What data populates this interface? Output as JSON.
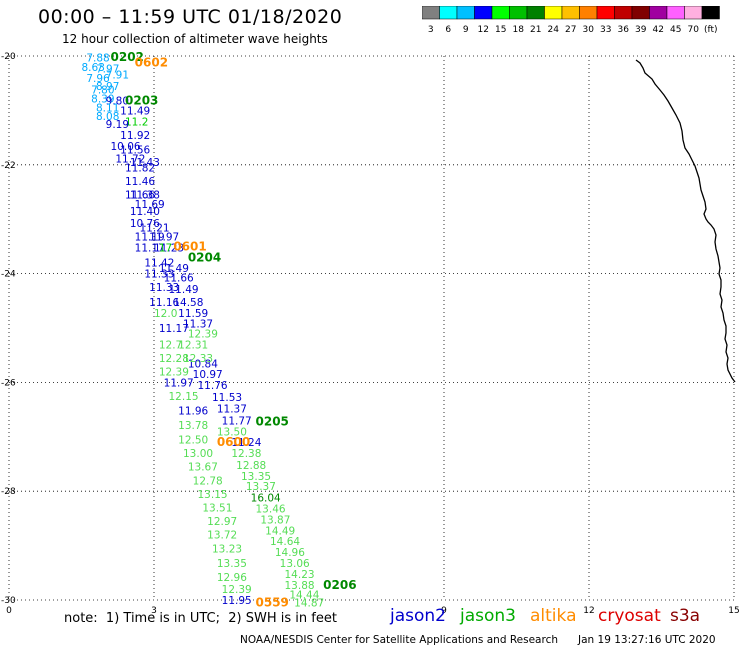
{
  "header": {
    "title": "00:00 – 11:59 UTC 01/18/2020",
    "subtitle": "12 hour collection of altimeter wave heights"
  },
  "colorbar": {
    "colors": [
      "#808080",
      "#00ffff",
      "#00c0ff",
      "#0000ff",
      "#00ff00",
      "#00c000",
      "#008000",
      "#ffff00",
      "#ffc000",
      "#ff8000",
      "#ff0000",
      "#c00000",
      "#800000",
      "#a000a0",
      "#ff60ff",
      "#ffb0e0",
      "#000000"
    ],
    "labels": [
      "3",
      "6",
      "9",
      "12",
      "15",
      "18",
      "21",
      "24",
      "27",
      "30",
      "33",
      "36",
      "39",
      "42",
      "45",
      "70",
      "(ft)"
    ]
  },
  "footer": {
    "note": "note:  1) Time is in UTC;  2) SWH is in feet",
    "satellites": [
      {
        "name": "jason2",
        "color": "#0000cc"
      },
      {
        "name": "jason3",
        "color": "#00aa00"
      },
      {
        "name": "altika",
        "color": "#ff8c00"
      },
      {
        "name": "cryosat",
        "color": "#dd0000"
      },
      {
        "name": "s3a",
        "color": "#880000"
      }
    ],
    "credit": "NOAA/NESDIS Center for Satellite Applications and Research",
    "timestamp": "Jan 19 13:27:16 UTC 2020"
  },
  "chart_data": {
    "type": "scatter",
    "xlim": [
      0,
      15
    ],
    "ylim": [
      -30,
      -20
    ],
    "x_ticks": [
      0,
      3,
      9,
      12,
      15
    ],
    "y_ticks": [
      -20,
      -22,
      -24,
      -26,
      -28,
      -30
    ],
    "grid": true,
    "series": [
      {
        "name": "jason2",
        "color": "#0000cc",
        "points": [
          {
            "x": 1.6,
            "y": -20.03,
            "label": "7.88",
            "color": "#00aaff"
          },
          {
            "x": 1.5,
            "y": -20.2,
            "label": "8.63",
            "color": "#00aaff"
          },
          {
            "x": 1.8,
            "y": -20.23,
            "label": "7.97",
            "color": "#00aaff"
          },
          {
            "x": 2.0,
            "y": -20.34,
            "label": "7.91",
            "color": "#00aaff"
          },
          {
            "x": 1.6,
            "y": -20.4,
            "label": "7.96",
            "color": "#00aaff"
          },
          {
            "x": 1.8,
            "y": -20.55,
            "label": "8.97",
            "color": "#00aaff"
          },
          {
            "x": 1.7,
            "y": -20.62,
            "label": "7.80",
            "color": "#00aaff"
          },
          {
            "x": 1.7,
            "y": -20.78,
            "label": "8.39",
            "color": "#00aaff"
          },
          {
            "x": 2.0,
            "y": -20.82,
            "label": "9.80",
            "color": "#0000cc"
          },
          {
            "x": 1.8,
            "y": -20.95,
            "label": "8.11",
            "color": "#00aaff"
          },
          {
            "x": 2.3,
            "y": -21.0,
            "label": "11.49",
            "color": "#0000cc"
          },
          {
            "x": 1.8,
            "y": -21.1,
            "label": "8.08",
            "color": "#00aaff"
          },
          {
            "x": 2.4,
            "y": -21.2,
            "label": "11.2",
            "color": "#00cc00"
          },
          {
            "x": 2.0,
            "y": -21.25,
            "label": "9.19",
            "color": "#0000cc"
          },
          {
            "x": 2.3,
            "y": -21.45,
            "label": "11.92",
            "color": "#0000cc"
          },
          {
            "x": 2.1,
            "y": -21.65,
            "label": "10.06",
            "color": "#0000cc"
          },
          {
            "x": 2.3,
            "y": -21.72,
            "label": "11.56",
            "color": "#0000cc"
          },
          {
            "x": 2.2,
            "y": -21.88,
            "label": "11.72",
            "color": "#0000cc"
          },
          {
            "x": 2.5,
            "y": -21.95,
            "label": "11.43",
            "color": "#0000cc"
          },
          {
            "x": 2.4,
            "y": -22.05,
            "label": "11.82",
            "color": "#0000cc"
          },
          {
            "x": 2.4,
            "y": -22.3,
            "label": "11.46",
            "color": "#0000cc"
          },
          {
            "x": 2.5,
            "y": -22.55,
            "label": "11.38",
            "color": "#0000cc"
          },
          {
            "x": 2.4,
            "y": -22.55,
            "label": "11.66",
            "color": "#0000cc"
          },
          {
            "x": 2.6,
            "y": -22.72,
            "label": "11.69",
            "color": "#0000cc"
          },
          {
            "x": 2.5,
            "y": -22.85,
            "label": "11.40",
            "color": "#0000cc"
          },
          {
            "x": 2.5,
            "y": -23.07,
            "label": "10.76",
            "color": "#0000cc"
          },
          {
            "x": 2.7,
            "y": -23.15,
            "label": "11.21",
            "color": "#0000cc"
          },
          {
            "x": 2.6,
            "y": -23.32,
            "label": "11.19",
            "color": "#0000cc"
          },
          {
            "x": 2.9,
            "y": -23.32,
            "label": "11.97",
            "color": "#0000cc"
          },
          {
            "x": 2.6,
            "y": -23.52,
            "label": "11.17",
            "color": "#0000cc"
          },
          {
            "x": 3.0,
            "y": -23.52,
            "label": "11.23",
            "color": "#0000cc"
          },
          {
            "x": 2.8,
            "y": -23.8,
            "label": "11.42",
            "color": "#0000cc"
          },
          {
            "x": 3.1,
            "y": -23.9,
            "label": "11.49",
            "color": "#0000cc"
          },
          {
            "x": 2.8,
            "y": -24.0,
            "label": "11.33",
            "color": "#0000cc"
          },
          {
            "x": 3.2,
            "y": -24.07,
            "label": "11.66",
            "color": "#0000cc"
          },
          {
            "x": 2.9,
            "y": -24.25,
            "label": "11.33",
            "color": "#0000cc"
          },
          {
            "x": 3.3,
            "y": -24.28,
            "label": "11.49",
            "color": "#0000cc"
          },
          {
            "x": 2.9,
            "y": -24.52,
            "label": "11.16",
            "color": "#0000cc"
          },
          {
            "x": 3.4,
            "y": -24.52,
            "label": "14.58",
            "color": "#0000cc"
          },
          {
            "x": 3.5,
            "y": -24.72,
            "label": "11.59",
            "color": "#0000cc"
          },
          {
            "x": 3.1,
            "y": -25.0,
            "label": "11.17",
            "color": "#0000cc"
          },
          {
            "x": 3.6,
            "y": -24.92,
            "label": "11.37",
            "color": "#0000cc"
          },
          {
            "x": 3.7,
            "y": -25.65,
            "label": "10.84",
            "color": "#0000cc"
          },
          {
            "x": 3.8,
            "y": -25.85,
            "label": "10.97",
            "color": "#0000cc"
          },
          {
            "x": 3.2,
            "y": -26.0,
            "label": "11.97",
            "color": "#0000cc"
          },
          {
            "x": 3.9,
            "y": -26.05,
            "label": "11.76",
            "color": "#0000cc"
          },
          {
            "x": 4.2,
            "y": -26.27,
            "label": "11.53",
            "color": "#0000cc"
          },
          {
            "x": 3.5,
            "y": -26.52,
            "label": "11.96",
            "color": "#0000cc"
          },
          {
            "x": 4.3,
            "y": -26.48,
            "label": "11.37",
            "color": "#0000cc"
          },
          {
            "x": 4.4,
            "y": -26.7,
            "label": "11.77",
            "color": "#0000cc"
          },
          {
            "x": 4.6,
            "y": -27.1,
            "label": "11.24",
            "color": "#0000cc"
          },
          {
            "x": 4.4,
            "y": -30.0,
            "label": "11.95",
            "color": "#0000cc"
          }
        ]
      },
      {
        "name": "jason3",
        "color": "#00cc00",
        "points": [
          {
            "x": 3.1,
            "y": -23.52,
            "label": "17",
            "color": "#00cc00"
          },
          {
            "x": 3.0,
            "y": -24.72,
            "label": "12.0",
            "color": "#55dd55"
          },
          {
            "x": 3.7,
            "y": -25.1,
            "label": "12.39",
            "color": "#55dd55"
          },
          {
            "x": 3.5,
            "y": -25.3,
            "label": "12.31",
            "color": "#55dd55"
          },
          {
            "x": 3.1,
            "y": -25.3,
            "label": "12.7",
            "color": "#55dd55"
          },
          {
            "x": 3.6,
            "y": -25.55,
            "label": "12.33",
            "color": "#55dd55"
          },
          {
            "x": 3.1,
            "y": -25.55,
            "label": "12.28",
            "color": "#55dd55"
          },
          {
            "x": 3.1,
            "y": -25.8,
            "label": "12.39",
            "color": "#55dd55"
          },
          {
            "x": 3.3,
            "y": -26.25,
            "label": "12.15",
            "color": "#55dd55"
          },
          {
            "x": 3.5,
            "y": -26.78,
            "label": "13.78",
            "color": "#55dd55"
          },
          {
            "x": 4.3,
            "y": -26.9,
            "label": "13.50",
            "color": "#55dd55"
          },
          {
            "x": 3.5,
            "y": -27.05,
            "label": "12.50",
            "color": "#55dd55"
          },
          {
            "x": 3.6,
            "y": -27.3,
            "label": "13.00",
            "color": "#55dd55"
          },
          {
            "x": 4.6,
            "y": -27.3,
            "label": "12.38",
            "color": "#55dd55"
          },
          {
            "x": 3.7,
            "y": -27.55,
            "label": "13.67",
            "color": "#55dd55"
          },
          {
            "x": 4.7,
            "y": -27.52,
            "label": "12.88",
            "color": "#55dd55"
          },
          {
            "x": 3.8,
            "y": -27.8,
            "label": "12.78",
            "color": "#55dd55"
          },
          {
            "x": 4.8,
            "y": -27.72,
            "label": "13.35",
            "color": "#55dd55"
          },
          {
            "x": 4.9,
            "y": -27.9,
            "label": "13.37",
            "color": "#55dd55"
          },
          {
            "x": 3.9,
            "y": -28.05,
            "label": "13.15",
            "color": "#55dd55"
          },
          {
            "x": 5.0,
            "y": -28.12,
            "label": "16.04",
            "color": "#008800"
          },
          {
            "x": 5.1,
            "y": -28.32,
            "label": "13.46",
            "color": "#55dd55"
          },
          {
            "x": 4.0,
            "y": -28.3,
            "label": "13.51",
            "color": "#55dd55"
          },
          {
            "x": 5.2,
            "y": -28.52,
            "label": "13.87",
            "color": "#55dd55"
          },
          {
            "x": 4.1,
            "y": -28.55,
            "label": "12.97",
            "color": "#55dd55"
          },
          {
            "x": 5.3,
            "y": -28.72,
            "label": "14.49",
            "color": "#55dd55"
          },
          {
            "x": 4.1,
            "y": -28.8,
            "label": "13.72",
            "color": "#55dd55"
          },
          {
            "x": 5.4,
            "y": -28.92,
            "label": "14.64",
            "color": "#55dd55"
          },
          {
            "x": 4.2,
            "y": -29.05,
            "label": "13.23",
            "color": "#55dd55"
          },
          {
            "x": 5.5,
            "y": -29.12,
            "label": "14.96",
            "color": "#55dd55"
          },
          {
            "x": 5.6,
            "y": -29.32,
            "label": "13.06",
            "color": "#55dd55"
          },
          {
            "x": 4.3,
            "y": -29.32,
            "label": "13.35",
            "color": "#55dd55"
          },
          {
            "x": 5.7,
            "y": -29.52,
            "label": "14.23",
            "color": "#55dd55"
          },
          {
            "x": 4.3,
            "y": -29.58,
            "label": "12.96",
            "color": "#55dd55"
          },
          {
            "x": 5.7,
            "y": -29.72,
            "label": "13.88",
            "color": "#55dd55"
          },
          {
            "x": 4.4,
            "y": -29.8,
            "label": "12.39",
            "color": "#55dd55"
          },
          {
            "x": 5.8,
            "y": -29.9,
            "label": "14.44",
            "color": "#55dd55"
          },
          {
            "x": 5.9,
            "y": -30.05,
            "label": "14.87",
            "color": "#55dd55"
          }
        ]
      },
      {
        "name": "times",
        "color": "#008800",
        "points": [
          {
            "x": 2.1,
            "y": -20.02,
            "label": "0202",
            "color": "#008800"
          },
          {
            "x": 2.4,
            "y": -20.82,
            "label": "0203",
            "color": "#008800"
          },
          {
            "x": 3.7,
            "y": -23.7,
            "label": "0204",
            "color": "#008800"
          },
          {
            "x": 5.1,
            "y": -26.72,
            "label": "0205",
            "color": "#008800"
          },
          {
            "x": 6.5,
            "y": -29.72,
            "label": "0206",
            "color": "#008800"
          }
        ]
      },
      {
        "name": "altika",
        "color": "#ff8c00",
        "points": [
          {
            "x": 2.6,
            "y": -20.12,
            "label": "0602",
            "color": "#ff8c00"
          },
          {
            "x": 3.4,
            "y": -23.5,
            "label": "0601",
            "color": "#ff8c00"
          },
          {
            "x": 4.3,
            "y": -27.1,
            "label": "0600",
            "color": "#ff8c00"
          },
          {
            "x": 5.1,
            "y": -30.05,
            "label": "0559",
            "color": "#ff8c00"
          }
        ]
      }
    ]
  }
}
